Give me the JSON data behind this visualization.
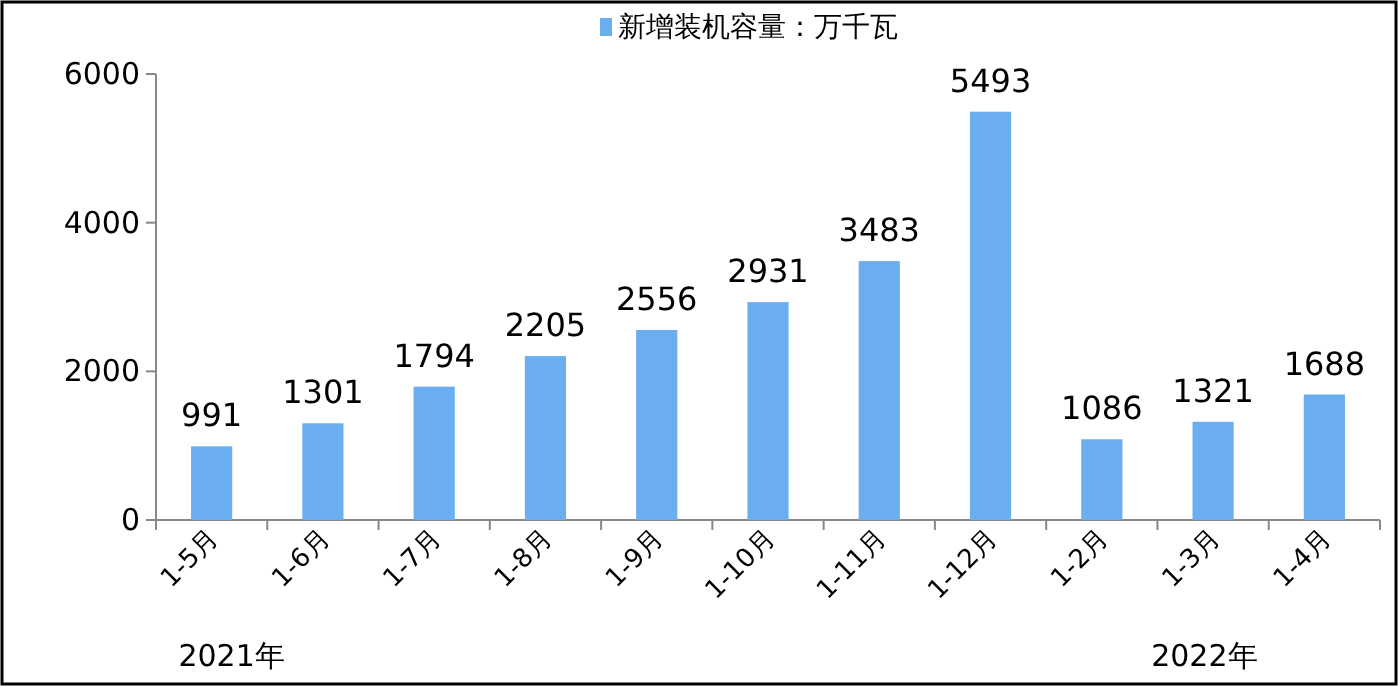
{
  "chart_data": {
    "type": "bar",
    "categories": [
      "1-5月",
      "1-6月",
      "1-7月",
      "1-8月",
      "1-9月",
      "1-10月",
      "1-11月",
      "1-12月",
      "1-2月",
      "1-3月",
      "1-4月"
    ],
    "series": [
      {
        "name": "新增装机容量：万千瓦",
        "color": "#6aaef0",
        "values": [
          991,
          1301,
          1794,
          2205,
          2556,
          2931,
          3483,
          5493,
          1086,
          1321,
          1688
        ]
      }
    ],
    "ylim": [
      0,
      6000
    ],
    "yticks": [
      0,
      2000,
      4000,
      6000
    ],
    "data_labels": true,
    "legend": "top",
    "annotations": [
      "2021年",
      "2022年"
    ]
  }
}
